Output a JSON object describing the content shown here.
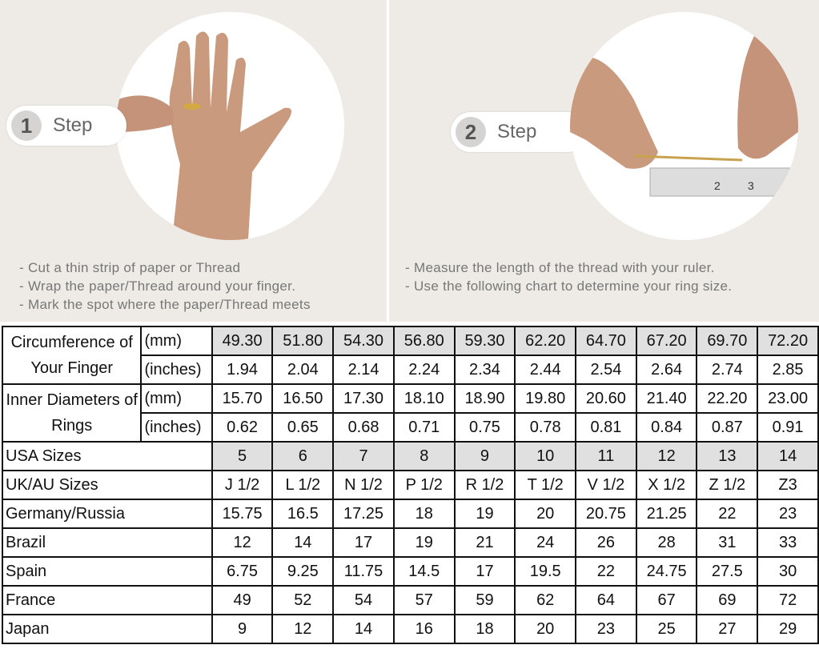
{
  "step1": {
    "number": "1",
    "label": "Step",
    "instructions": [
      "Cut a thin strip of paper or Thread",
      "Wrap the paper/Thread around your finger.",
      "Mark the spot where the paper/Thread meets"
    ]
  },
  "step2": {
    "number": "2",
    "label": "Step",
    "instructions": [
      "Measure the length of the thread with your ruler.",
      "Use the following chart to determine your ring size."
    ]
  },
  "table": {
    "circumference": {
      "label": "Circumference of Your Finger",
      "mm_label": "(mm)",
      "in_label": "(inches)",
      "mm": [
        "49.30",
        "51.80",
        "54.30",
        "56.80",
        "59.30",
        "62.20",
        "64.70",
        "67.20",
        "69.70",
        "72.20"
      ],
      "inches": [
        "1.94",
        "2.04",
        "2.14",
        "2.24",
        "2.34",
        "2.44",
        "2.54",
        "2.64",
        "2.74",
        "2.85"
      ]
    },
    "diameter": {
      "label": "Inner Diameters of Rings",
      "mm_label": "(mm)",
      "in_label": "(inches)",
      "mm": [
        "15.70",
        "16.50",
        "17.30",
        "18.10",
        "18.90",
        "19.80",
        "20.60",
        "21.40",
        "22.20",
        "23.00"
      ],
      "inches": [
        "0.62",
        "0.65",
        "0.68",
        "0.71",
        "0.75",
        "0.78",
        "0.81",
        "0.84",
        "0.87",
        "0.91"
      ]
    },
    "rows": [
      {
        "label": "USA Sizes",
        "values": [
          "5",
          "6",
          "7",
          "8",
          "9",
          "10",
          "11",
          "12",
          "13",
          "14"
        ],
        "shaded": true
      },
      {
        "label": "UK/AU Sizes",
        "values": [
          "J 1/2",
          "L 1/2",
          "N 1/2",
          "P 1/2",
          "R 1/2",
          "T 1/2",
          "V 1/2",
          "X 1/2",
          "Z 1/2",
          "Z3"
        ]
      },
      {
        "label": "Germany/Russia",
        "values": [
          "15.75",
          "16.5",
          "17.25",
          "18",
          "19",
          "20",
          "20.75",
          "21.25",
          "22",
          "23"
        ]
      },
      {
        "label": "Brazil",
        "values": [
          "12",
          "14",
          "17",
          "19",
          "21",
          "24",
          "26",
          "28",
          "31",
          "33"
        ]
      },
      {
        "label": "Spain",
        "values": [
          "6.75",
          "9.25",
          "11.75",
          "14.5",
          "17",
          "19.5",
          "22",
          "24.75",
          "27.5",
          "30"
        ]
      },
      {
        "label": "France",
        "values": [
          "49",
          "52",
          "54",
          "57",
          "59",
          "62",
          "64",
          "67",
          "69",
          "72"
        ]
      },
      {
        "label": "Japan",
        "values": [
          "9",
          "12",
          "14",
          "16",
          "18",
          "20",
          "23",
          "25",
          "27",
          "29"
        ]
      }
    ]
  }
}
